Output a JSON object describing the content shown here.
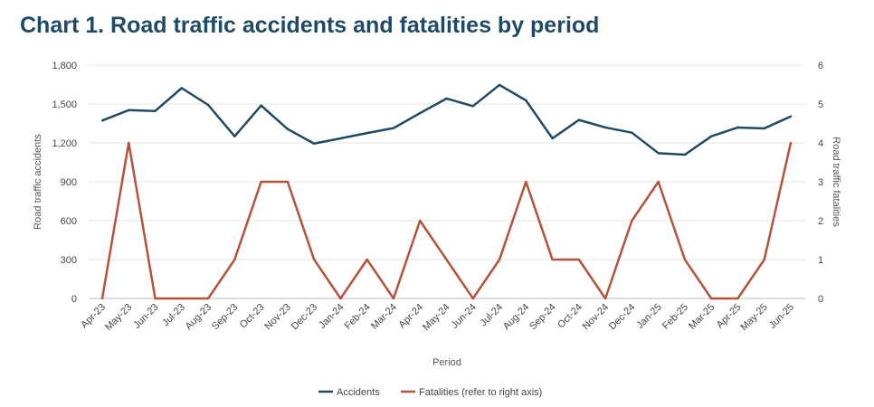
{
  "chart_data": {
    "type": "line",
    "title": "Chart 1. Road traffic accidents and fatalities by period",
    "xlabel": "Period",
    "ylabel": "Road traffic accidents",
    "y2label": "Road traffic fatalities",
    "ylim": [
      0,
      1800
    ],
    "y2lim": [
      0,
      6
    ],
    "yticks": [
      "0",
      "300",
      "600",
      "900",
      "1,200",
      "1,500",
      "1,800"
    ],
    "y2ticks": [
      "0",
      "1",
      "2",
      "3",
      "4",
      "5",
      "6"
    ],
    "grid": true,
    "legend_position": "bottom",
    "categories": [
      "Apr-23",
      "May-23",
      "Jun-23",
      "Jul-23",
      "Aug-23",
      "Sep-23",
      "Oct-23",
      "Nov-23",
      "Dec-23",
      "Jan-24",
      "Feb-24",
      "Mar-24",
      "Apr-24",
      "May-24",
      "Jun-24",
      "Jul-24",
      "Aug-24",
      "Sep-24",
      "Oct-24",
      "Nov-24",
      "Dec-24",
      "Jan-25",
      "Feb-25",
      "Mar-25",
      "Apr-25",
      "May-25",
      "Jun-25"
    ],
    "series": [
      {
        "name": "Accidents",
        "axis": "left",
        "color": "#1e4a66",
        "values": [
          1372,
          1453,
          1446,
          1623,
          1493,
          1251,
          1488,
          1307,
          1195,
          1235,
          1276,
          1314,
          1430,
          1542,
          1484,
          1647,
          1528,
          1235,
          1377,
          1319,
          1279,
          1121,
          1109,
          1251,
          1319,
          1312,
          1404
        ]
      },
      {
        "name": "Fatalities (refer to right axis)",
        "axis": "right",
        "color": "#b5523a",
        "values": [
          0,
          4,
          0,
          0,
          0,
          1,
          3,
          3,
          1,
          0,
          1,
          0,
          2,
          1,
          0,
          1,
          3,
          1,
          1,
          0,
          2,
          3,
          1,
          0,
          0,
          1,
          4
        ]
      }
    ]
  }
}
